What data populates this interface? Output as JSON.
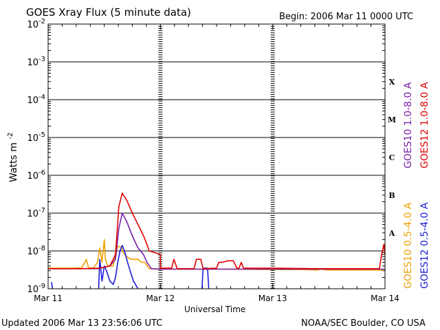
{
  "header": {
    "title": "GOES Xray Flux (5 minute data)",
    "begin": "Begin:  2006 Mar 11 0000 UTC"
  },
  "footer": {
    "updated": "Updated 2006 Mar 13 23:56:06 UTC",
    "credit": "NOAA/SEC Boulder, CO USA"
  },
  "colors": {
    "goes10_long": "#7a1fa8",
    "goes12_long": "#e00000",
    "goes10_short": "#f0a000",
    "goes12_short": "#1a1ad8"
  },
  "chart_data": {
    "type": "line",
    "title": "GOES Xray Flux (5 minute data)",
    "xlabel": "Universal Time",
    "ylabel_main": "Watts m",
    "ylabel_sup": "-2",
    "yscale": "log",
    "ylim": [
      1e-09,
      0.01
    ],
    "xlim": [
      "2006-03-11 00:00",
      "2006-03-14 00:00"
    ],
    "x_ticks": [
      "Mar 11",
      "Mar 12",
      "Mar 13",
      "Mar 14"
    ],
    "y_ticks": [
      {
        "value": 0.01,
        "base": "10",
        "exp": "-2"
      },
      {
        "value": 0.001,
        "base": "10",
        "exp": "-3"
      },
      {
        "value": 0.0001,
        "base": "10",
        "exp": "-4"
      },
      {
        "value": 1e-05,
        "base": "10",
        "exp": "-5"
      },
      {
        "value": 1e-06,
        "base": "10",
        "exp": "-6"
      },
      {
        "value": 1e-07,
        "base": "10",
        "exp": "-7"
      },
      {
        "value": 1e-08,
        "base": "10",
        "exp": "-8"
      },
      {
        "value": 1e-09,
        "base": "10",
        "exp": "-9"
      }
    ],
    "flare_classes": [
      {
        "label": "X",
        "value": 0.0003
      },
      {
        "label": "M",
        "value": 3e-05
      },
      {
        "label": "C",
        "value": 3e-06
      },
      {
        "label": "B",
        "value": 3e-07
      },
      {
        "label": "A",
        "value": 3e-08
      }
    ],
    "grid": true,
    "legend_placement": "right",
    "series": [
      {
        "name": "GOES10 0.5-4.0 A",
        "color": "#f0a000",
        "points": [
          [
            0.0,
            3.5e-09
          ],
          [
            0.2,
            3.5e-09
          ],
          [
            0.3,
            3.6e-09
          ],
          [
            0.34,
            6e-09
          ],
          [
            0.36,
            3.6e-09
          ],
          [
            0.4,
            3.5e-09
          ],
          [
            0.44,
            5e-09
          ],
          [
            0.46,
            1.2e-08
          ],
          [
            0.48,
            5e-09
          ],
          [
            0.5,
            2e-08
          ],
          [
            0.51,
            6e-09
          ],
          [
            0.53,
            4e-09
          ],
          [
            0.58,
            4e-09
          ],
          [
            0.6,
            9e-09
          ],
          [
            0.62,
            1.3e-08
          ],
          [
            0.65,
            1.3e-08
          ],
          [
            0.67,
            9e-09
          ],
          [
            0.7,
            7e-09
          ],
          [
            0.74,
            6e-09
          ],
          [
            0.8,
            6e-09
          ],
          [
            0.83,
            5e-09
          ],
          [
            0.86,
            5e-09
          ],
          [
            0.9,
            3.4e-09
          ],
          [
            1.0,
            3.3e-09
          ],
          [
            1.3,
            3.3e-09
          ],
          [
            1.6,
            3.3e-09
          ],
          [
            2.0,
            3.2e-09
          ],
          [
            2.3,
            3.2e-09
          ],
          [
            2.4,
            3.1e-09
          ],
          [
            2.42,
            3.3e-09
          ],
          [
            2.5,
            3.1e-09
          ],
          [
            3.0,
            3.1e-09
          ]
        ]
      },
      {
        "name": "GOES12 0.5-4.0 A",
        "color": "#1a1ad8",
        "points": [
          [
            0.45,
            1e-09
          ],
          [
            0.46,
            6e-09
          ],
          [
            0.48,
            1.6e-09
          ],
          [
            0.5,
            4e-09
          ],
          [
            0.52,
            3e-09
          ],
          [
            0.55,
            1.6e-09
          ],
          [
            0.58,
            1.3e-09
          ],
          [
            0.6,
            2e-09
          ],
          [
            0.62,
            5e-09
          ],
          [
            0.64,
            1e-08
          ],
          [
            0.66,
            1.4e-08
          ],
          [
            0.68,
            1e-08
          ],
          [
            0.7,
            6e-09
          ],
          [
            0.73,
            3e-09
          ],
          [
            0.76,
            1.6e-09
          ],
          [
            0.8,
            1e-09
          ]
        ],
        "extra_segments": [
          [
            [
              0.03,
              1.5e-09
            ],
            [
              0.04,
              1e-09
            ]
          ],
          [
            [
              1.37,
              1e-09
            ],
            [
              1.38,
              3.5e-09
            ],
            [
              1.42,
              3.5e-09
            ],
            [
              1.43,
              1e-09
            ]
          ]
        ]
      },
      {
        "name": "GOES10 1.0-8.0 A",
        "color": "#7a1fa8",
        "points": [
          [
            0.0,
            3.4e-09
          ],
          [
            0.3,
            3.4e-09
          ],
          [
            0.45,
            3.4e-09
          ],
          [
            0.55,
            4e-09
          ],
          [
            0.6,
            6e-09
          ],
          [
            0.63,
            4e-08
          ],
          [
            0.66,
            1e-07
          ],
          [
            0.7,
            6e-08
          ],
          [
            0.75,
            2.5e-08
          ],
          [
            0.8,
            1.2e-08
          ],
          [
            0.85,
            8e-09
          ],
          [
            0.88,
            5e-09
          ],
          [
            0.92,
            3.4e-09
          ],
          [
            1.0,
            3.3e-09
          ],
          [
            1.5,
            3.3e-09
          ],
          [
            2.0,
            3.3e-09
          ],
          [
            2.5,
            3.3e-09
          ],
          [
            3.0,
            3.3e-09
          ]
        ]
      },
      {
        "name": "GOES12 1.0-8.0 A",
        "color": "#e00000",
        "points": [
          [
            0.0,
            3.4e-09
          ],
          [
            0.3,
            3.4e-09
          ],
          [
            0.45,
            3.5e-09
          ],
          [
            0.55,
            4e-09
          ],
          [
            0.6,
            8e-09
          ],
          [
            0.63,
            1.5e-07
          ],
          [
            0.66,
            3.4e-07
          ],
          [
            0.7,
            2.2e-07
          ],
          [
            0.75,
            1e-07
          ],
          [
            0.8,
            5e-08
          ],
          [
            0.85,
            2.5e-08
          ],
          [
            0.88,
            1.5e-08
          ],
          [
            0.9,
            1e-08
          ],
          [
            0.95,
            9e-09
          ],
          [
            1.0,
            8e-09
          ],
          [
            1.0,
            3.5e-09
          ],
          [
            1.1,
            3.5e-09
          ],
          [
            1.12,
            6e-09
          ],
          [
            1.15,
            3.4e-09
          ],
          [
            1.3,
            3.4e-09
          ],
          [
            1.32,
            6e-09
          ],
          [
            1.36,
            6e-09
          ],
          [
            1.38,
            3.4e-09
          ],
          [
            1.5,
            3.5e-09
          ],
          [
            1.52,
            5e-09
          ],
          [
            1.55,
            5e-09
          ],
          [
            1.6,
            5.5e-09
          ],
          [
            1.65,
            5.5e-09
          ],
          [
            1.68,
            3.5e-09
          ],
          [
            1.7,
            3.5e-09
          ],
          [
            1.72,
            5e-09
          ],
          [
            1.74,
            3.5e-09
          ],
          [
            2.0,
            3.5e-09
          ],
          [
            2.4,
            3.4e-09
          ],
          [
            2.95,
            3.4e-09
          ],
          [
            2.97,
            8e-09
          ],
          [
            2.99,
            1.5e-08
          ],
          [
            3.0,
            8e-09
          ]
        ]
      }
    ]
  }
}
